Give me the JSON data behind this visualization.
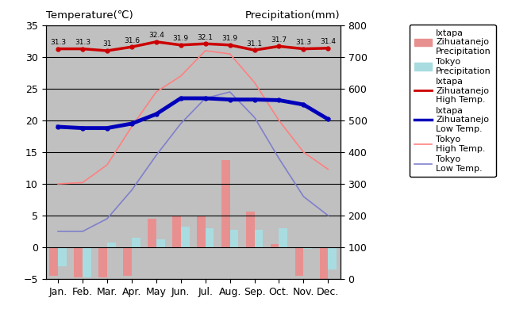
{
  "months": [
    "Jan.",
    "Feb.",
    "Mar.",
    "Apr.",
    "May",
    "Jun.",
    "Jul.",
    "Aug.",
    "Sep.",
    "Oct.",
    "Nov.",
    "Dec."
  ],
  "ixtapa_high": [
    31.3,
    31.3,
    31.0,
    31.6,
    32.4,
    31.9,
    32.1,
    31.9,
    31.1,
    31.7,
    31.3,
    31.4
  ],
  "ixtapa_low": [
    19.0,
    18.8,
    18.8,
    19.5,
    21.0,
    23.5,
    23.5,
    23.3,
    23.3,
    23.2,
    22.5,
    20.2
  ],
  "tokyo_high": [
    10.0,
    10.2,
    13.0,
    19.0,
    24.5,
    27.0,
    31.0,
    30.5,
    26.0,
    20.0,
    15.0,
    12.3
  ],
  "tokyo_low": [
    2.5,
    2.5,
    4.5,
    9.0,
    14.5,
    19.5,
    23.5,
    24.5,
    20.5,
    14.0,
    8.0,
    5.0
  ],
  "ixtapa_precip_temp": [
    -4.5,
    -4.8,
    -4.8,
    -4.5,
    4.5,
    5.0,
    5.0,
    13.8,
    5.6,
    0.5,
    -4.5,
    -5.0
  ],
  "tokyo_precip_temp": [
    -3.0,
    -4.8,
    0.8,
    1.5,
    1.3,
    3.2,
    3.0,
    2.8,
    2.8,
    3.0,
    -0.2,
    -3.5
  ],
  "ixtapa_high_labels": [
    "31.3",
    "31.3",
    "31",
    "31.6",
    "32.4",
    "31.9",
    "32.1",
    "31.9",
    "31.1",
    "31.7",
    "31.3",
    "31.4"
  ],
  "bg_color": "#c0c0c0",
  "ixtapa_high_color": "#cc0000",
  "ixtapa_low_color": "#0000bb",
  "tokyo_high_color": "#ff8080",
  "tokyo_low_color": "#8080cc",
  "ixtapa_precip_color": "#e89090",
  "tokyo_precip_color": "#a8dce0",
  "title_left": "Temperature(℃)",
  "title_right": "Precipitation(mm)",
  "ylim_left": [
    -5,
    35
  ],
  "legend_labels": [
    "Ixtapa\nZihuatanejo\nPrecipitation",
    "Tokyo\nPrecipitation",
    "Ixtapa\nZihuatanejo\nHigh Temp.",
    "Ixtapa\nZihuatanejo\nLow Temp.",
    "Tokyo\nHigh Temp.",
    "Tokyo\nLow Temp."
  ]
}
